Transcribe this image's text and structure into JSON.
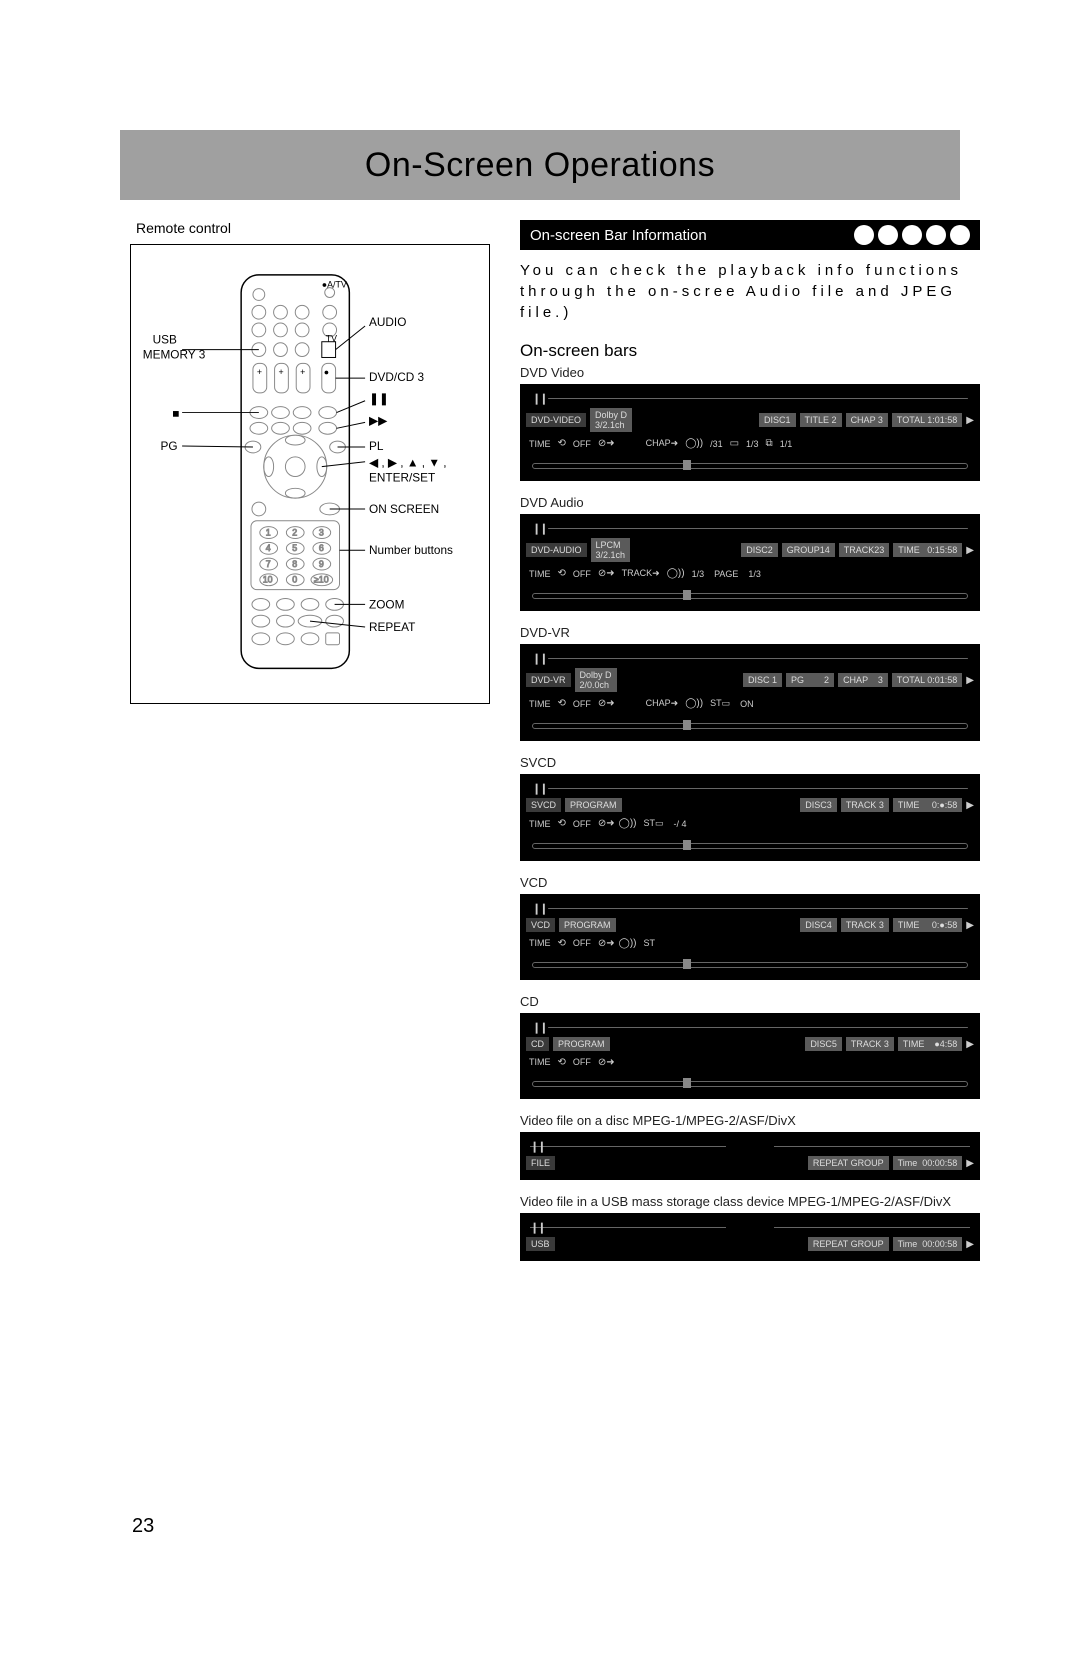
{
  "page": {
    "title": "On-Screen Operations",
    "number": "23"
  },
  "remote": {
    "label": "Remote control",
    "callouts": {
      "usb": "USB",
      "memory3": "MEMORY 3",
      "audio": "AUDIO",
      "dvdcd3": "DVD/CD 3",
      "stop": "■",
      "pg": "PG",
      "ff": "▶▶",
      "pause": "❚❚",
      "pl": "PL",
      "arrows": "◀ , ▶ , ▲ , ▼ ,",
      "enterset": "ENTER/SET",
      "onscreen": "ON SCREEN",
      "numbuttons": "Number buttons",
      "zoom": "ZOOM",
      "repeat": "REPEAT"
    }
  },
  "section": {
    "title": "On-screen Bar Information",
    "intro": "You can check the playback info functions through the on-scree Audio file and JPEG file.)",
    "subheading": "On-screen bars"
  },
  "bars": [
    {
      "label": "DVD Video",
      "rowA": [
        {
          "t": "DVD-VIDEO",
          "c": "dark"
        },
        {
          "t": "Dolby D\n3/2.1ch",
          "c": "cell"
        },
        {
          "spacer": true
        },
        {
          "t": "DISC1",
          "c": "cell"
        },
        {
          "t": "TITLE 2",
          "c": "cell"
        },
        {
          "t": "CHAP 3",
          "c": "cell"
        },
        {
          "t": "TOTAL 1:01:58",
          "c": "cell"
        },
        {
          "t": "▶",
          "c": "tri"
        }
      ],
      "rowB": [
        {
          "t": "TIME",
          "c": "txt"
        },
        {
          "t": "⟲",
          "c": "icon-sym"
        },
        {
          "t": "OFF",
          "c": "txt"
        },
        {
          "t": "⊘➜",
          "c": "icon-sym"
        },
        {
          "spacer": true
        },
        {
          "t": "CHAP➜",
          "c": "txt"
        },
        {
          "t": "◯))",
          "c": "icon-sym"
        },
        {
          "t": "/31",
          "c": "txt"
        },
        {
          "t": "▭",
          "c": "icon-sym"
        },
        {
          "t": "1/3",
          "c": "txt"
        },
        {
          "t": "⧉",
          "c": "icon-sym"
        },
        {
          "t": "1/1",
          "c": "txt"
        }
      ],
      "bottomDecor": true
    },
    {
      "label": "DVD Audio",
      "rowA": [
        {
          "t": "DVD-AUDIO",
          "c": "dark"
        },
        {
          "t": "LPCM\n3/2.1ch",
          "c": "cell"
        },
        {
          "spacer": true
        },
        {
          "t": "DISC2",
          "c": "cell"
        },
        {
          "t": "GROUP14",
          "c": "cell"
        },
        {
          "t": "TRACK23",
          "c": "cell"
        },
        {
          "t": "TIME   0:15:58",
          "c": "cell"
        },
        {
          "t": "▶",
          "c": "tri"
        }
      ],
      "rowB": [
        {
          "t": "TIME",
          "c": "txt"
        },
        {
          "t": "⟲",
          "c": "icon-sym"
        },
        {
          "t": "OFF",
          "c": "txt"
        },
        {
          "t": "⊘➜",
          "c": "icon-sym"
        },
        {
          "t": "TRACK➜",
          "c": "txt"
        },
        {
          "t": "◯))",
          "c": "icon-sym"
        },
        {
          "t": "1/3",
          "c": "txt"
        },
        {
          "t": "PAGE",
          "c": "txt"
        },
        {
          "t": "1/3",
          "c": "txt"
        }
      ],
      "bottomDecor": true
    },
    {
      "label": "DVD-VR",
      "rowA": [
        {
          "t": "DVD-VR",
          "c": "dark"
        },
        {
          "t": "Dolby D\n2/0.0ch",
          "c": "cell"
        },
        {
          "spacer": true
        },
        {
          "t": "DISC 1",
          "c": "cell"
        },
        {
          "t": "PG        2",
          "c": "cell"
        },
        {
          "t": "CHAP    3",
          "c": "cell"
        },
        {
          "t": "TOTAL 0:01:58",
          "c": "cell"
        },
        {
          "t": "▶",
          "c": "tri"
        }
      ],
      "rowB": [
        {
          "t": "TIME",
          "c": "txt"
        },
        {
          "t": "⟲",
          "c": "icon-sym"
        },
        {
          "t": "OFF",
          "c": "txt"
        },
        {
          "t": "⊘➜",
          "c": "icon-sym"
        },
        {
          "spacer": true
        },
        {
          "t": "CHAP➜",
          "c": "txt"
        },
        {
          "t": "◯))",
          "c": "icon-sym"
        },
        {
          "t": "ST▭",
          "c": "txt"
        },
        {
          "t": "ON",
          "c": "txt"
        }
      ],
      "bottomDecor": true
    },
    {
      "label": "SVCD",
      "rowA": [
        {
          "t": "SVCD",
          "c": "dark"
        },
        {
          "t": "PROGRAM",
          "c": "cell"
        },
        {
          "spacer": true
        },
        {
          "t": "DISC3",
          "c": "cell"
        },
        {
          "t": "TRACK 3",
          "c": "cell"
        },
        {
          "t": "TIME     0:●:58",
          "c": "cell"
        },
        {
          "t": "▶",
          "c": "tri"
        }
      ],
      "rowB": [
        {
          "t": "TIME",
          "c": "txt"
        },
        {
          "t": "⟲",
          "c": "icon-sym"
        },
        {
          "t": "OFF",
          "c": "txt"
        },
        {
          "t": "⊘➜",
          "c": "icon-sym"
        },
        {
          "t": "◯))",
          "c": "icon-sym"
        },
        {
          "t": "ST▭",
          "c": "txt"
        },
        {
          "t": "-/ 4",
          "c": "txt"
        }
      ],
      "bottomDecor": true
    },
    {
      "label": "VCD",
      "rowA": [
        {
          "t": "VCD",
          "c": "dark"
        },
        {
          "t": "PROGRAM",
          "c": "cell"
        },
        {
          "spacer": true
        },
        {
          "t": "DISC4",
          "c": "cell"
        },
        {
          "t": "TRACK 3",
          "c": "cell"
        },
        {
          "t": "TIME     0:●:58",
          "c": "cell"
        },
        {
          "t": "▶",
          "c": "tri"
        }
      ],
      "rowB": [
        {
          "t": "TIME",
          "c": "txt"
        },
        {
          "t": "⟲",
          "c": "icon-sym"
        },
        {
          "t": "OFF",
          "c": "txt"
        },
        {
          "t": "⊘➜",
          "c": "icon-sym"
        },
        {
          "t": "◯))",
          "c": "icon-sym"
        },
        {
          "t": "ST",
          "c": "txt"
        }
      ],
      "bottomDecor": true
    },
    {
      "label": "CD",
      "rowA": [
        {
          "t": "CD",
          "c": "dark"
        },
        {
          "t": "PROGRAM",
          "c": "cell"
        },
        {
          "spacer": true
        },
        {
          "t": "DISC5",
          "c": "cell"
        },
        {
          "t": "TRACK 3",
          "c": "cell"
        },
        {
          "t": "TIME    ●4:58",
          "c": "cell"
        },
        {
          "t": "▶",
          "c": "tri"
        }
      ],
      "rowB": [
        {
          "t": "TIME",
          "c": "txt"
        },
        {
          "t": "⟲",
          "c": "icon-sym"
        },
        {
          "t": "OFF",
          "c": "txt"
        },
        {
          "t": "⊘➜",
          "c": "icon-sym"
        }
      ],
      "bottomDecor": true
    },
    {
      "label": "Video file on a disc MPEG-1/MPEG-2/ASF/DivX",
      "splitTop": true,
      "rowA": [
        {
          "t": "FILE",
          "c": "dark"
        },
        {
          "spacer": true
        },
        {
          "t": "REPEAT GROUP",
          "c": "cell"
        },
        {
          "t": "Time  00:00:58",
          "c": "cell"
        },
        {
          "t": "▶",
          "c": "tri"
        }
      ]
    },
    {
      "label": "Video file in a USB mass storage class device MPEG-1/MPEG-2/ASF/DivX",
      "splitTop": true,
      "rowA": [
        {
          "t": "USB",
          "c": "dark"
        },
        {
          "spacer": true
        },
        {
          "t": "REPEAT GROUP",
          "c": "cell"
        },
        {
          "t": "Time  00:00:58",
          "c": "cell"
        },
        {
          "t": "▶",
          "c": "tri"
        }
      ]
    }
  ]
}
